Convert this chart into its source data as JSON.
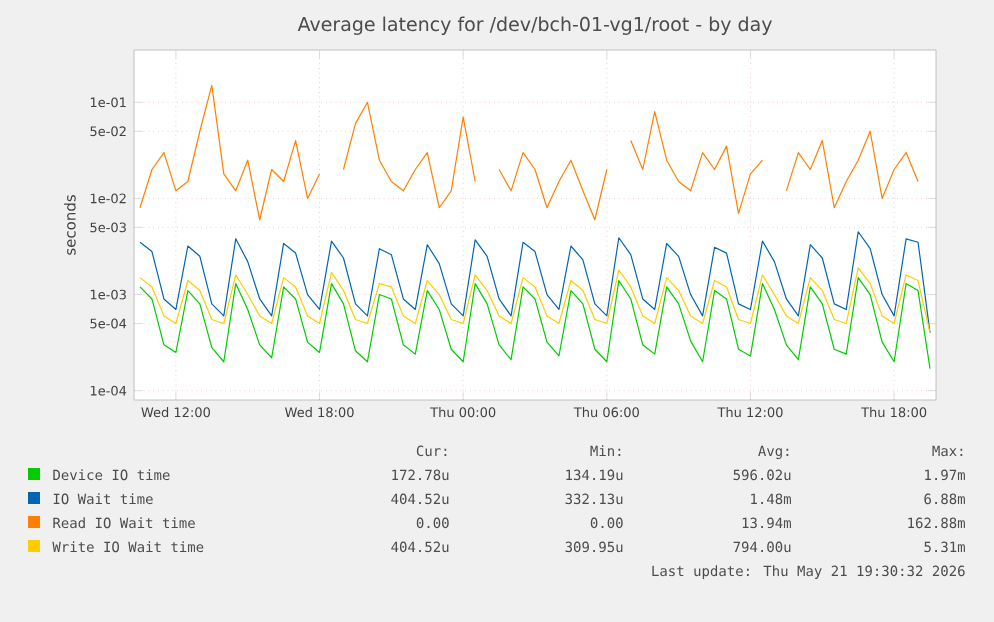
{
  "chart_data": {
    "type": "line",
    "title": "Average latency for /dev/bch-01-vg1/root - by day",
    "ylabel": "seconds",
    "log": "y",
    "grid": true,
    "legend": "bottom",
    "xlim": [
      "2026-05-20T10:15",
      "2026-05-21T19:45"
    ],
    "xticks": [
      {
        "value": "2026-05-20T12:00",
        "label": "Wed 12:00"
      },
      {
        "value": "2026-05-20T18:00",
        "label": "Wed 18:00"
      },
      {
        "value": "2026-05-21T00:00",
        "label": "Thu 00:00"
      },
      {
        "value": "2026-05-21T06:00",
        "label": "Thu 06:00"
      },
      {
        "value": "2026-05-21T12:00",
        "label": "Thu 12:00"
      },
      {
        "value": "2026-05-21T18:00",
        "label": "Thu 18:00"
      }
    ],
    "ylim": [
      8e-05,
      0.35
    ],
    "yticks": [
      {
        "value": 0.0001,
        "label": "1e-04"
      },
      {
        "value": 0.0005,
        "label": "5e-04"
      },
      {
        "value": 0.001,
        "label": "1e-03"
      },
      {
        "value": 0.005,
        "label": "5e-03"
      },
      {
        "value": 0.01,
        "label": "1e-02"
      },
      {
        "value": 0.05,
        "label": "5e-02"
      },
      {
        "value": 0.1,
        "label": "1e-01"
      }
    ],
    "x": [
      "2026-05-20T10:30",
      "2026-05-20T11:00",
      "2026-05-20T11:30",
      "2026-05-20T12:00",
      "2026-05-20T12:30",
      "2026-05-20T13:00",
      "2026-05-20T13:30",
      "2026-05-20T14:00",
      "2026-05-20T14:30",
      "2026-05-20T15:00",
      "2026-05-20T15:30",
      "2026-05-20T16:00",
      "2026-05-20T16:30",
      "2026-05-20T17:00",
      "2026-05-20T17:30",
      "2026-05-20T18:00",
      "2026-05-20T18:30",
      "2026-05-20T19:00",
      "2026-05-20T19:30",
      "2026-05-20T20:00",
      "2026-05-20T20:30",
      "2026-05-20T21:00",
      "2026-05-20T21:30",
      "2026-05-20T22:00",
      "2026-05-20T22:30",
      "2026-05-20T23:00",
      "2026-05-20T23:30",
      "2026-05-21T00:00",
      "2026-05-21T00:30",
      "2026-05-21T01:00",
      "2026-05-21T01:30",
      "2026-05-21T02:00",
      "2026-05-21T02:30",
      "2026-05-21T03:00",
      "2026-05-21T03:30",
      "2026-05-21T04:00",
      "2026-05-21T04:30",
      "2026-05-21T05:00",
      "2026-05-21T05:30",
      "2026-05-21T06:00",
      "2026-05-21T06:30",
      "2026-05-21T07:00",
      "2026-05-21T07:30",
      "2026-05-21T08:00",
      "2026-05-21T08:30",
      "2026-05-21T09:00",
      "2026-05-21T09:30",
      "2026-05-21T10:00",
      "2026-05-21T10:30",
      "2026-05-21T11:00",
      "2026-05-21T11:30",
      "2026-05-21T12:00",
      "2026-05-21T12:30",
      "2026-05-21T13:00",
      "2026-05-21T13:30",
      "2026-05-21T14:00",
      "2026-05-21T14:30",
      "2026-05-21T15:00",
      "2026-05-21T15:30",
      "2026-05-21T16:00",
      "2026-05-21T16:30",
      "2026-05-21T17:00",
      "2026-05-21T17:30",
      "2026-05-21T18:00",
      "2026-05-21T18:30",
      "2026-05-21T19:00",
      "2026-05-21T19:30"
    ],
    "series": [
      {
        "name": "Device IO time",
        "color": "#00cc00",
        "values": [
          0.0012,
          0.0009,
          0.0003,
          0.00025,
          0.0011,
          0.0008,
          0.00028,
          0.0002,
          0.0013,
          0.0007,
          0.0003,
          0.00022,
          0.0012,
          0.0009,
          0.00032,
          0.00025,
          0.0013,
          0.0008,
          0.00026,
          0.0002,
          0.001,
          0.0009,
          0.0003,
          0.00024,
          0.0011,
          0.0007,
          0.00027,
          0.0002,
          0.0013,
          0.0008,
          0.0003,
          0.00021,
          0.0012,
          0.0009,
          0.00032,
          0.00023,
          0.0011,
          0.0008,
          0.00027,
          0.0002,
          0.0014,
          0.0009,
          0.0003,
          0.00024,
          0.0012,
          0.0008,
          0.00033,
          0.0002,
          0.0011,
          0.0009,
          0.00027,
          0.00023,
          0.0013,
          0.0007,
          0.0003,
          0.00021,
          0.0012,
          0.0008,
          0.00027,
          0.00024,
          0.0015,
          0.001,
          0.00032,
          0.0002,
          0.0013,
          0.0011,
          0.00017
        ]
      },
      {
        "name": "IO Wait time",
        "color": "#0066b3",
        "values": [
          0.0035,
          0.0028,
          0.0009,
          0.0007,
          0.0032,
          0.0025,
          0.0008,
          0.0006,
          0.0038,
          0.0022,
          0.0009,
          0.0006,
          0.0034,
          0.0027,
          0.001,
          0.0007,
          0.0036,
          0.0024,
          0.0008,
          0.0006,
          0.003,
          0.0026,
          0.0009,
          0.0007,
          0.0033,
          0.0021,
          0.0008,
          0.0006,
          0.0037,
          0.0025,
          0.0009,
          0.0006,
          0.0035,
          0.0028,
          0.001,
          0.0007,
          0.0032,
          0.0023,
          0.0008,
          0.0006,
          0.0039,
          0.0026,
          0.0009,
          0.0007,
          0.0034,
          0.0025,
          0.001,
          0.0006,
          0.0031,
          0.0027,
          0.0008,
          0.0007,
          0.0036,
          0.0022,
          0.0009,
          0.0006,
          0.0033,
          0.0024,
          0.0008,
          0.0007,
          0.0045,
          0.003,
          0.001,
          0.0006,
          0.0038,
          0.0035,
          0.0004
        ]
      },
      {
        "name": "Read IO Wait time",
        "color": "#ff8000",
        "values": [
          0.008,
          0.02,
          0.03,
          0.012,
          0.015,
          0.05,
          0.15,
          0.018,
          0.012,
          0.025,
          0.006,
          0.02,
          0.015,
          0.04,
          0.01,
          0.018,
          null,
          0.02,
          0.06,
          0.1,
          0.025,
          0.015,
          0.012,
          0.02,
          0.03,
          0.008,
          0.012,
          0.07,
          0.015,
          null,
          0.02,
          0.012,
          0.03,
          0.02,
          0.008,
          0.015,
          0.025,
          0.012,
          0.006,
          0.02,
          null,
          0.04,
          0.02,
          0.08,
          0.025,
          0.015,
          0.012,
          0.03,
          0.02,
          0.035,
          0.007,
          0.018,
          0.025,
          null,
          0.012,
          0.03,
          0.02,
          0.04,
          0.008,
          0.015,
          0.025,
          0.05,
          0.01,
          0.02,
          0.03,
          0.015,
          null
        ]
      },
      {
        "name": "Write IO Wait time",
        "color": "#ffcc00",
        "values": [
          0.0015,
          0.0012,
          0.0006,
          0.0005,
          0.0014,
          0.0011,
          0.00055,
          0.0005,
          0.0016,
          0.001,
          0.0006,
          0.0005,
          0.0015,
          0.0012,
          0.0006,
          0.0005,
          0.0017,
          0.0011,
          0.00055,
          0.0005,
          0.0013,
          0.0012,
          0.0006,
          0.0005,
          0.0014,
          0.001,
          0.00055,
          0.0005,
          0.0016,
          0.0011,
          0.0006,
          0.0005,
          0.0015,
          0.0012,
          0.0006,
          0.0005,
          0.0014,
          0.0011,
          0.00055,
          0.0005,
          0.0018,
          0.0012,
          0.0006,
          0.0005,
          0.0015,
          0.0011,
          0.0006,
          0.0005,
          0.0014,
          0.0012,
          0.00055,
          0.0005,
          0.0016,
          0.001,
          0.0006,
          0.0005,
          0.0015,
          0.0011,
          0.00055,
          0.0005,
          0.0019,
          0.0013,
          0.0006,
          0.0005,
          0.0016,
          0.0014,
          0.0004
        ]
      }
    ],
    "annotations": [
      "Cur:",
      "Min:",
      "Avg:",
      "Max:",
      "172.78u",
      "134.19u",
      "596.02u",
      "1.97m",
      "404.52u",
      "332.13u",
      "1.48m",
      "6.88m",
      "0.00",
      "0.00",
      "13.94m",
      "162.88m",
      "404.52u",
      "309.95u",
      "794.00u",
      "5.31m",
      "Last update: Thu May 21 19:30:32 2026"
    ]
  }
}
